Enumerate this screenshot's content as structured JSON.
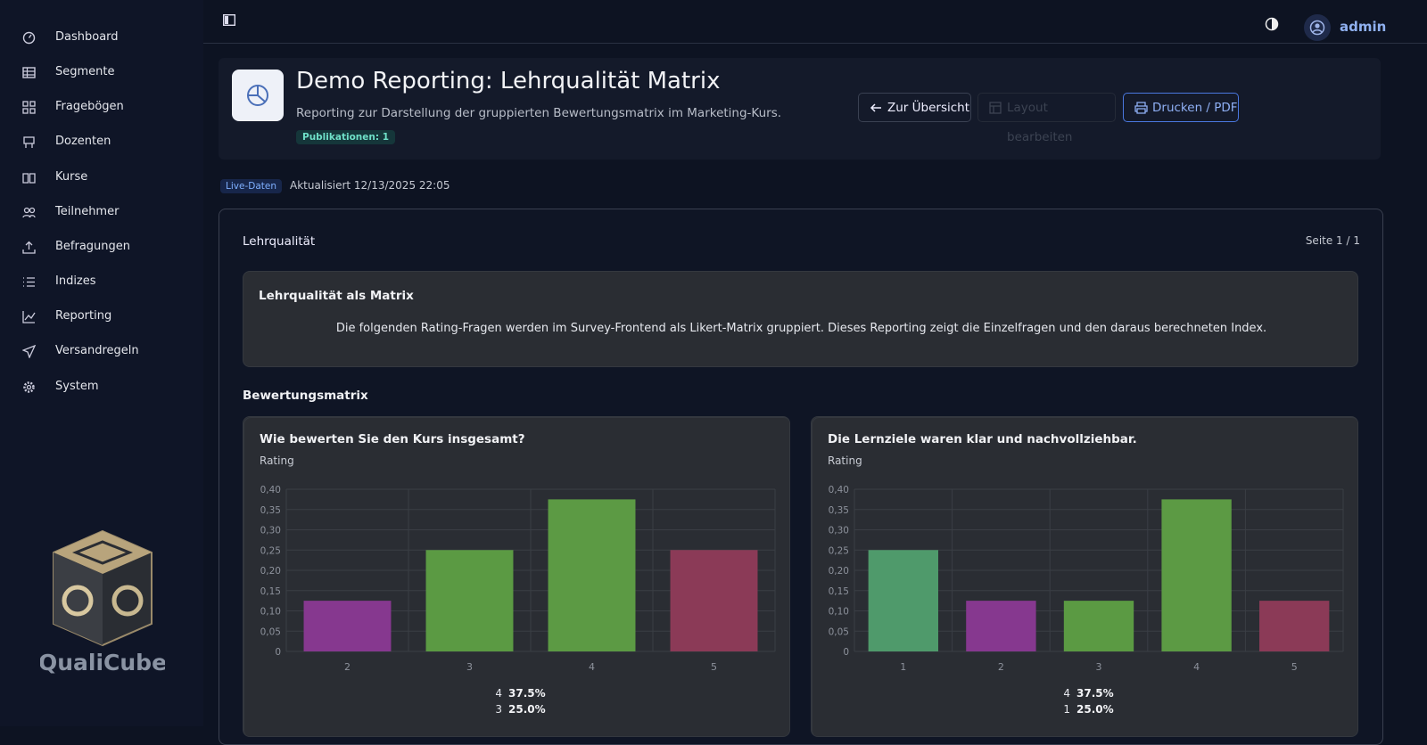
{
  "sidebar": {
    "items": [
      "Dashboard",
      "Segmente",
      "Fragebögen",
      "Dozenten",
      "Kurse",
      "Teilnehmer",
      "Befragungen",
      "Indizes",
      "Reporting",
      "Versandregeln",
      "System"
    ],
    "logo": "QualiCube"
  },
  "topbar": {
    "user": "admin"
  },
  "header": {
    "title": "Demo Reporting: Lehrqualität Matrix",
    "subtitle": "Reporting zur Darstellung der gruppierten Bewertungsmatrix im Marketing-Kurs.",
    "badge": "Publikationen: 1",
    "buttons": [
      "Zur Übersicht",
      "Layout bearbeiten",
      "Drucken / PDF"
    ]
  },
  "status": {
    "badge": "Live-Daten",
    "updated": "Aktualisiert 12/13/2025 22:05"
  },
  "report": {
    "title": "Lehrqualität",
    "page": "Seite 1 / 1",
    "intro": {
      "title": "Lehrqualität als Matrix",
      "text": "Die folgenden Rating-Fragen werden im Survey-Frontend als Likert-Matrix gruppiert. Dieses Reporting zeigt die Einzelfragen und den daraus berechneten Index."
    },
    "section": "Bewertungsmatrix"
  },
  "chart_data": [
    {
      "type": "bar",
      "title": "Wie bewerten Sie den Kurs insgesamt?",
      "subtitle": "Rating",
      "categories": [
        "2",
        "3",
        "4",
        "5"
      ],
      "values": [
        0.125,
        0.25,
        0.375,
        0.25
      ],
      "colors": [
        "#86388f",
        "#5b9a43",
        "#5c9a44",
        "#8b3a57"
      ],
      "ylim": [
        0,
        0.4
      ],
      "yticks": [
        0,
        {
          "value": 0.05,
          "label": "0,05"
        },
        {
          "value": 0.1,
          "label": "0,10"
        },
        {
          "value": 0.15,
          "label": "0,15"
        },
        {
          "value": 0.2,
          "label": "0,20"
        },
        {
          "value": 0.25,
          "label": "0,25"
        },
        {
          "value": 0.3,
          "label": "0,30"
        },
        {
          "value": 0.35,
          "label": "0,35"
        },
        {
          "value": 0.4,
          "label": "0,40"
        }
      ],
      "grid": true,
      "summary": [
        {
          "category": "4",
          "share": "37.5%"
        },
        {
          "category": "3",
          "share": "25.0%"
        }
      ]
    },
    {
      "type": "bar",
      "title": "Die Lernziele waren klar und nachvollziehbar.",
      "subtitle": "Rating",
      "categories": [
        "1",
        "2",
        "3",
        "4",
        "5"
      ],
      "values": [
        0.25,
        0.125,
        0.125,
        0.375,
        0.125
      ],
      "colors": [
        "#4f9a6b",
        "#86388f",
        "#5b9a43",
        "#5c9a44",
        "#8b3a57"
      ],
      "ylim": [
        0,
        0.4
      ],
      "yticks": [
        0,
        {
          "value": 0.05,
          "label": "0,05"
        },
        {
          "value": 0.1,
          "label": "0,10"
        },
        {
          "value": 0.15,
          "label": "0,15"
        },
        {
          "value": 0.2,
          "label": "0,20"
        },
        {
          "value": 0.25,
          "label": "0,25"
        },
        {
          "value": 0.3,
          "label": "0,30"
        },
        {
          "value": 0.35,
          "label": "0,35"
        },
        {
          "value": 0.4,
          "label": "0,40"
        }
      ],
      "grid": true,
      "summary": [
        {
          "category": "4",
          "share": "37.5%"
        },
        {
          "category": "1",
          "share": "25.0%"
        }
      ]
    }
  ]
}
